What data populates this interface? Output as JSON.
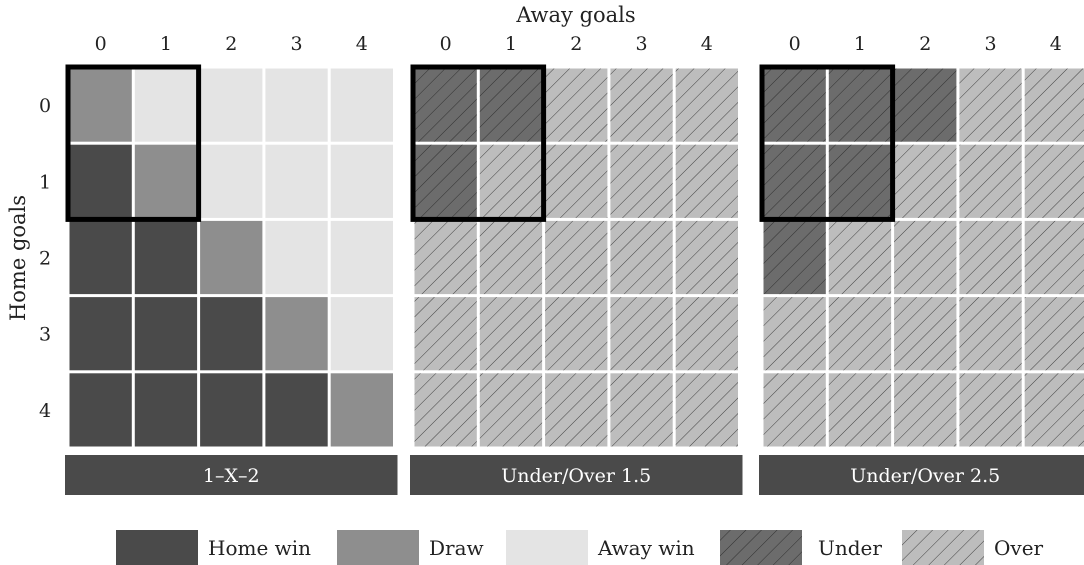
{
  "chart_data": {
    "type": "heatmap",
    "xlabel": "Away goals",
    "ylabel": "Home goals",
    "x": [
      0,
      1,
      2,
      3,
      4
    ],
    "y": [
      0,
      1,
      2,
      3,
      4
    ],
    "x_tick_labels": [
      "0",
      "1",
      "2",
      "3",
      "4"
    ],
    "y_tick_labels": [
      "0",
      "1",
      "2",
      "3",
      "4"
    ],
    "colors": {
      "home_win": "#4a4a4a",
      "draw": "#8e8e8e",
      "away_win": "#e4e4e4",
      "under": "#6c6c6c",
      "over": "#bdbdbd",
      "panel_label_bg": "#4a4a4a",
      "highlight_border": "#000000"
    },
    "panels": [
      {
        "title": "1–X–2",
        "cells": [
          [
            "draw",
            "away_win",
            "away_win",
            "away_win",
            "away_win"
          ],
          [
            "home_win",
            "draw",
            "away_win",
            "away_win",
            "away_win"
          ],
          [
            "home_win",
            "home_win",
            "draw",
            "away_win",
            "away_win"
          ],
          [
            "home_win",
            "home_win",
            "home_win",
            "draw",
            "away_win"
          ],
          [
            "home_win",
            "home_win",
            "home_win",
            "home_win",
            "draw"
          ]
        ],
        "highlight": {
          "home_goals": [
            0,
            1
          ],
          "away_goals": [
            0,
            1
          ]
        }
      },
      {
        "title": "Under/Over 1.5",
        "cells": [
          [
            "under",
            "under",
            "over",
            "over",
            "over"
          ],
          [
            "under",
            "over",
            "over",
            "over",
            "over"
          ],
          [
            "over",
            "over",
            "over",
            "over",
            "over"
          ],
          [
            "over",
            "over",
            "over",
            "over",
            "over"
          ],
          [
            "over",
            "over",
            "over",
            "over",
            "over"
          ]
        ],
        "highlight": {
          "home_goals": [
            0,
            1
          ],
          "away_goals": [
            0,
            1
          ]
        }
      },
      {
        "title": "Under/Over 2.5",
        "cells": [
          [
            "under",
            "under",
            "under",
            "over",
            "over"
          ],
          [
            "under",
            "under",
            "over",
            "over",
            "over"
          ],
          [
            "under",
            "over",
            "over",
            "over",
            "over"
          ],
          [
            "over",
            "over",
            "over",
            "over",
            "over"
          ],
          [
            "over",
            "over",
            "over",
            "over",
            "over"
          ]
        ],
        "highlight": {
          "home_goals": [
            0,
            1
          ],
          "away_goals": [
            0,
            1
          ]
        }
      }
    ],
    "legend": {
      "position": "bottom",
      "items": [
        {
          "key": "home_win",
          "label": "Home win"
        },
        {
          "key": "draw",
          "label": "Draw"
        },
        {
          "key": "away_win",
          "label": "Away win"
        },
        {
          "key": "under",
          "label": "Under"
        },
        {
          "key": "over",
          "label": "Over"
        }
      ]
    }
  }
}
